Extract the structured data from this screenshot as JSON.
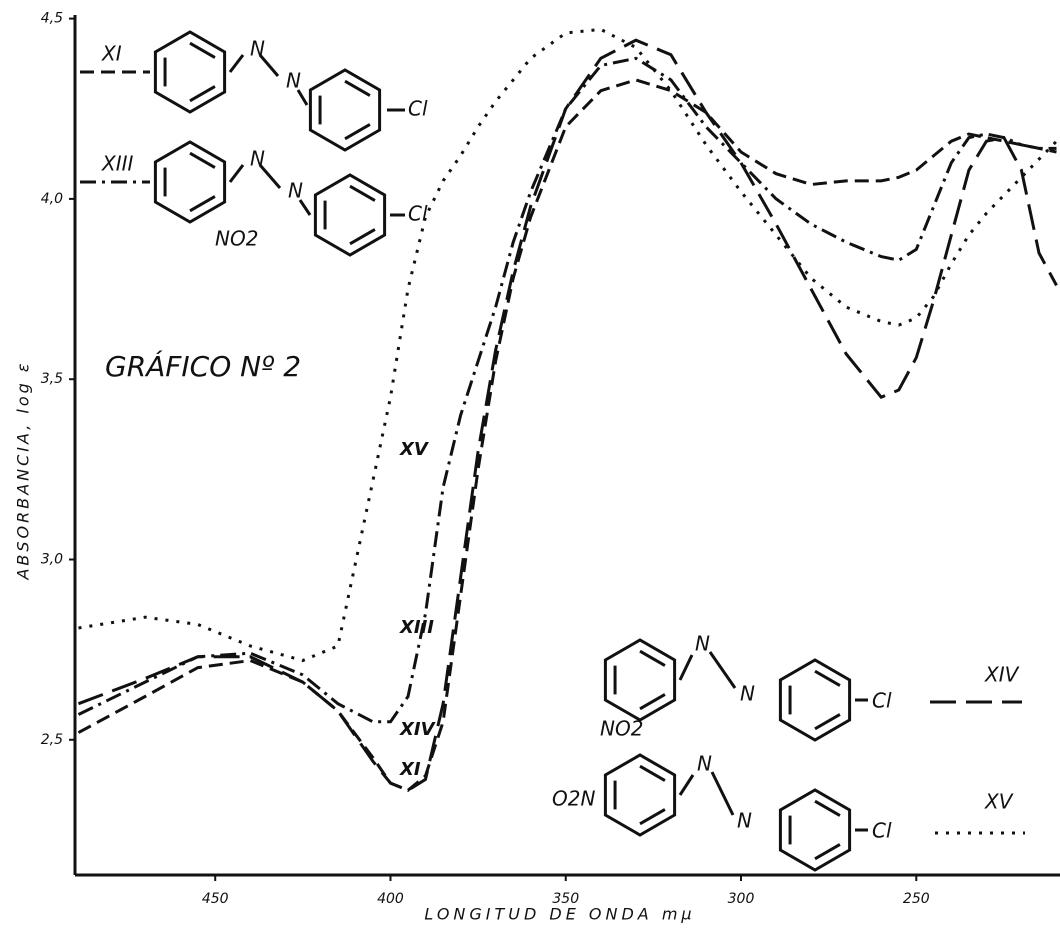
{
  "chart_data": {
    "type": "line",
    "annotation": "GRÁFICO Nº 2",
    "x_label": "LONGITUD DE ONDA mμ",
    "y_label": "ABSORBANCIA, log ε",
    "xlim": [
      490,
      209
    ],
    "ylim": [
      2.125,
      4.51
    ],
    "xticks": [
      450,
      400,
      350,
      300,
      250
    ],
    "yticks": [
      {
        "value": 4.5,
        "label": "4,5"
      },
      {
        "value": 4.0,
        "label": "4,0"
      },
      {
        "value": 3.5,
        "label": "3,5"
      },
      {
        "value": 3.0,
        "label": "3,0"
      },
      {
        "value": 2.5,
        "label": "2,5"
      }
    ],
    "x": [
      489,
      470,
      455,
      440,
      425,
      415,
      405,
      400,
      395,
      390,
      385,
      380,
      375,
      370,
      365,
      360,
      350,
      340,
      330,
      320,
      310,
      300,
      290,
      280,
      270,
      260,
      255,
      250,
      245,
      240,
      235,
      230,
      225,
      220,
      215,
      210
    ],
    "series": [
      {
        "name": "XI",
        "color": "#111111",
        "dash": "dashed",
        "structure_labels": [
          "N",
          "N",
          "Cl"
        ],
        "values": [
          2.52,
          2.62,
          2.7,
          2.72,
          2.66,
          2.58,
          2.45,
          2.38,
          2.36,
          2.4,
          2.55,
          2.9,
          3.25,
          3.55,
          3.78,
          3.95,
          4.2,
          4.3,
          4.33,
          4.3,
          4.24,
          4.13,
          4.07,
          4.04,
          4.05,
          4.05,
          4.06,
          4.08,
          4.12,
          4.16,
          4.18,
          4.17,
          4.16,
          4.15,
          4.14,
          4.13
        ]
      },
      {
        "name": "XIII",
        "color": "#111111",
        "dash": "dashdot",
        "structure_labels": [
          "N",
          "N",
          "NO2",
          "Cl"
        ],
        "values": [
          2.57,
          2.66,
          2.73,
          2.74,
          2.68,
          2.6,
          2.55,
          2.55,
          2.62,
          2.85,
          3.2,
          3.4,
          3.55,
          3.7,
          3.88,
          4.02,
          4.25,
          4.37,
          4.39,
          4.33,
          4.2,
          4.1,
          4.0,
          3.93,
          3.88,
          3.84,
          3.83,
          3.86,
          3.98,
          4.1,
          4.17,
          4.18,
          4.17,
          4.15,
          4.14,
          4.14
        ]
      },
      {
        "name": "XIV",
        "color": "#111111",
        "dash": "longdash",
        "structure_labels": [
          "N",
          "N",
          "NO2",
          "Cl"
        ],
        "values": [
          2.6,
          2.67,
          2.73,
          2.73,
          2.66,
          2.58,
          2.44,
          2.38,
          2.36,
          2.39,
          2.6,
          2.95,
          3.3,
          3.58,
          3.8,
          3.98,
          4.25,
          4.39,
          4.44,
          4.4,
          4.24,
          4.1,
          3.93,
          3.75,
          3.57,
          3.45,
          3.47,
          3.56,
          3.72,
          3.9,
          4.08,
          4.16,
          4.17,
          4.08,
          3.85,
          3.76
        ]
      },
      {
        "name": "XV",
        "color": "#111111",
        "dash": "dotted",
        "structure_labels": [
          "O2N",
          "N",
          "N",
          "Cl"
        ],
        "values": [
          2.81,
          2.84,
          2.82,
          2.76,
          2.72,
          2.76,
          3.22,
          3.45,
          3.75,
          3.95,
          4.05,
          4.12,
          4.2,
          4.27,
          4.33,
          4.39,
          4.46,
          4.47,
          4.42,
          4.3,
          4.15,
          4.02,
          3.9,
          3.78,
          3.7,
          3.66,
          3.65,
          3.67,
          3.73,
          3.82,
          3.9,
          3.96,
          4.01,
          4.06,
          4.11,
          4.16
        ]
      }
    ]
  }
}
